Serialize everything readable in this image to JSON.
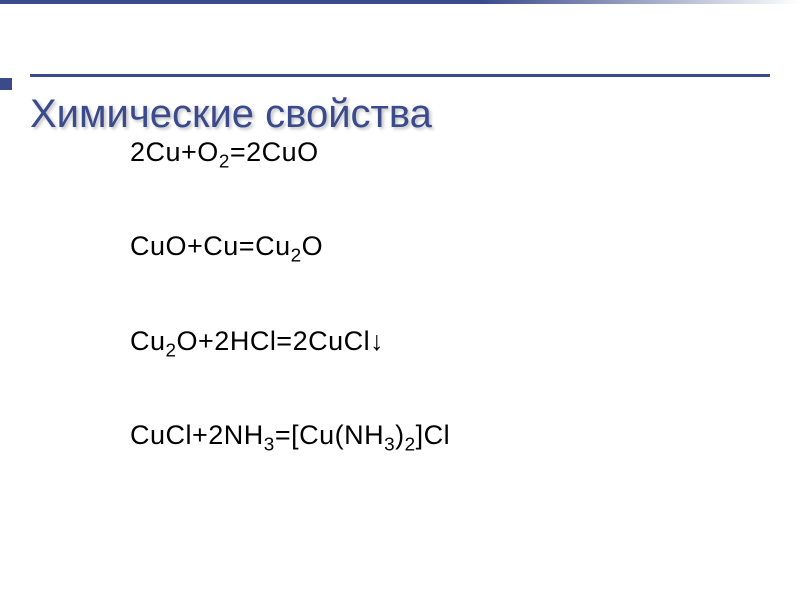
{
  "slide": {
    "title": "Химические свойства",
    "title_color": "#3a4a8a",
    "title_fontsize": 40,
    "accent_color": "#3a4a8a",
    "background_color": "#ffffff",
    "equations": [
      {
        "parts": [
          {
            "t": "2Cu+O"
          },
          {
            "t": "2",
            "sub": true
          },
          {
            "t": "=2CuO"
          }
        ]
      },
      {
        "parts": [
          {
            "t": "CuO+Cu=Cu"
          },
          {
            "t": "2",
            "sub": true
          },
          {
            "t": "O"
          }
        ]
      },
      {
        "parts": [
          {
            "t": "Cu"
          },
          {
            "t": "2",
            "sub": true
          },
          {
            "t": "O+2HCl=2CuCl"
          },
          {
            "t": "↓",
            "arrow": true
          }
        ]
      },
      {
        "parts": [
          {
            "t": "CuCl+2NH"
          },
          {
            "t": "3",
            "sub": true
          },
          {
            "t": "=[Cu(NH"
          },
          {
            "t": "3",
            "sub": true
          },
          {
            "t": ")"
          },
          {
            "t": "2",
            "sub": true
          },
          {
            "t": "]Cl"
          }
        ]
      }
    ],
    "equation_color": "#000000",
    "equation_fontsize": 27,
    "equation_spacing": 58
  }
}
